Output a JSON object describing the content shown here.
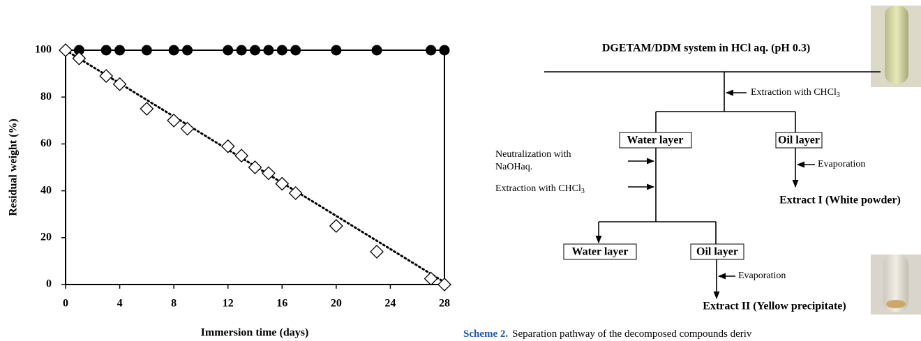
{
  "chart_data": {
    "type": "scatter",
    "xlabel": "Immersion time (days)",
    "ylabel": "Residual weight (%)",
    "xlim": [
      0,
      28
    ],
    "xticks": [
      0,
      4,
      8,
      12,
      16,
      20,
      24,
      28
    ],
    "ylim": [
      0,
      100
    ],
    "yticks": [
      0,
      20,
      40,
      60,
      80,
      100
    ],
    "series": [
      {
        "marker": "circle-filled",
        "color": "#000000",
        "x": [
          1,
          3,
          4,
          6,
          8,
          9,
          12,
          13,
          14,
          15,
          16,
          17,
          20,
          23,
          27,
          28
        ],
        "values": [
          100,
          100,
          100,
          100,
          100,
          100,
          100,
          100,
          100,
          100,
          100,
          100,
          100,
          100,
          100,
          100
        ]
      },
      {
        "marker": "diamond-open",
        "color": "#000000",
        "x": [
          0,
          1,
          3,
          4,
          6,
          8,
          9,
          12,
          13,
          14,
          15,
          16,
          17,
          20,
          23,
          27,
          28
        ],
        "values": [
          100,
          96.5,
          89,
          85.5,
          75,
          70,
          66.5,
          59,
          55,
          50,
          47.5,
          43,
          39,
          25,
          14,
          2.5,
          0
        ]
      },
      {
        "marker": "dotted-line",
        "color": "#000000",
        "x": [
          0,
          28
        ],
        "values": [
          100,
          1
        ]
      }
    ]
  },
  "scheme": {
    "title": "DGETAM/DDM system in HCl aq. (pH 0.3)",
    "step1": {
      "text": "Extraction with CHCl",
      "sub": "3"
    },
    "box_water1": "Water layer",
    "box_oil1": "Oil layer",
    "neutralization": [
      "Neutralization with",
      "NaOHaq."
    ],
    "step2": {
      "text": "Extraction with CHCl",
      "sub": "3"
    },
    "evaporation1": "Evaporation",
    "extract1": "Extract I (White powder)",
    "box_water2": "Water layer",
    "box_oil2": "Oil layer",
    "evaporation2": "Evaporation",
    "extract2": "Extract II (Yellow precipitate)",
    "caption_label": "Scheme 2.",
    "caption_text": "Separation pathway of the decomposed compounds deriv"
  }
}
